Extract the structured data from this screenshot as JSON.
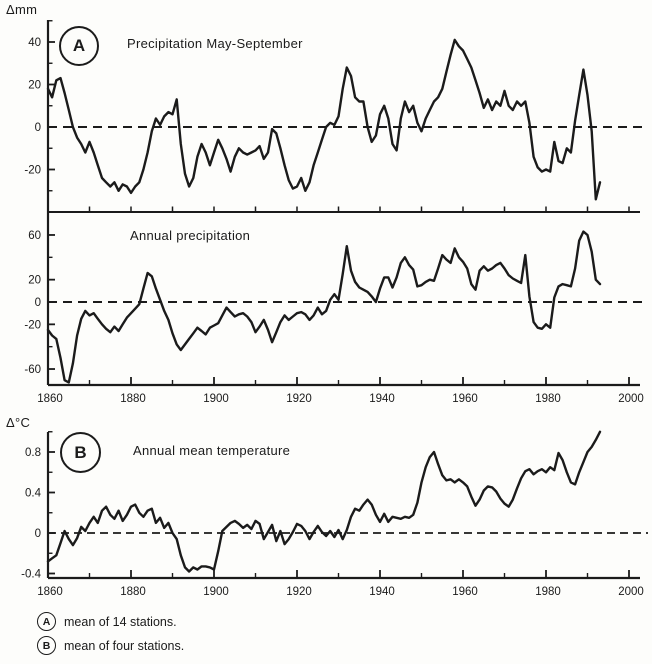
{
  "figure": {
    "unit_label_top": "Δmm",
    "unit_label_bottom": "Δ°C",
    "ink": "#1b1b1b",
    "background": "#fdfdfb",
    "footnotes": [
      {
        "marker": "A",
        "text": "mean of 14 stations."
      },
      {
        "marker": "B",
        "text": "mean of four stations."
      }
    ]
  },
  "chart_data": [
    {
      "type": "line",
      "panel_marker": "A",
      "title": "Precipitation May-September",
      "ylabel": "Δmm",
      "xlim": [
        1860,
        2000
      ],
      "ylim": [
        -40,
        50
      ],
      "x_start": 1860,
      "x_end": 1993,
      "x_step": 1,
      "zero_line_dashed": true,
      "grid": false,
      "yticks_labeled": [
        40,
        20,
        0,
        -20
      ],
      "yticks_minor": [
        50,
        30,
        10,
        -10,
        -30
      ],
      "values": [
        18,
        14,
        22,
        23,
        16,
        8,
        0,
        -5,
        -8,
        -12,
        -7,
        -12,
        -18,
        -24,
        -26,
        -28,
        -26,
        -30,
        -27,
        -28,
        -31,
        -28,
        -26,
        -20,
        -12,
        -2,
        4,
        1,
        5,
        7,
        6,
        13,
        -8,
        -22,
        -28,
        -24,
        -14,
        -8,
        -12,
        -18,
        -12,
        -6,
        -10,
        -15,
        -21,
        -14,
        -10,
        -12,
        -13,
        -12,
        -11,
        -9,
        -15,
        -12,
        -1,
        -3,
        -10,
        -18,
        -25,
        -29,
        -28,
        -24,
        -30,
        -26,
        -18,
        -12,
        -6,
        0,
        2,
        1,
        5,
        18,
        28,
        24,
        14,
        12,
        12,
        0,
        -7,
        -4,
        6,
        10,
        4,
        -8,
        -11,
        4,
        12,
        7,
        10,
        2,
        -2,
        4,
        8,
        12,
        14,
        18,
        26,
        34,
        41,
        38,
        36,
        32,
        28,
        22,
        16,
        9,
        13,
        8,
        12,
        10,
        17,
        10,
        8,
        12,
        10,
        12,
        2,
        -14,
        -19,
        -21,
        -20,
        -21,
        -7,
        -16,
        -17,
        -10,
        -12,
        3,
        15,
        27,
        15,
        -2,
        -34,
        -26
      ]
    },
    {
      "type": "line",
      "panel_marker": "",
      "title": "Annual precipitation",
      "ylabel": "Δmm",
      "xlim": [
        1860,
        2000
      ],
      "ylim": [
        -75,
        80
      ],
      "x_start": 1860,
      "x_end": 1993,
      "x_step": 1,
      "zero_line_dashed": true,
      "grid": false,
      "yticks_labeled": [
        60,
        20,
        0,
        -20,
        -60
      ],
      "yticks_minor": [
        40,
        -40
      ],
      "xticks_labeled": [
        1860,
        1880,
        1900,
        1920,
        1940,
        1960,
        1980,
        2000
      ],
      "xticks_minor": [
        1870,
        1890,
        1910,
        1930,
        1950,
        1970,
        1990
      ],
      "values": [
        -25,
        -30,
        -33,
        -50,
        -70,
        -72,
        -55,
        -30,
        -15,
        -8,
        -12,
        -10,
        -15,
        -20,
        -24,
        -27,
        -22,
        -26,
        -20,
        -14,
        -10,
        -6,
        -2,
        12,
        26,
        23,
        12,
        2,
        -8,
        -16,
        -28,
        -38,
        -43,
        -38,
        -33,
        -28,
        -23,
        -26,
        -29,
        -23,
        -21,
        -19,
        -12,
        -5,
        -9,
        -13,
        -11,
        -10,
        -13,
        -18,
        -27,
        -22,
        -16,
        -25,
        -36,
        -27,
        -18,
        -12,
        -16,
        -13,
        -10,
        -9,
        -11,
        -16,
        -12,
        -5,
        -11,
        -8,
        2,
        7,
        2,
        25,
        50,
        28,
        18,
        13,
        11,
        9,
        5,
        0,
        12,
        22,
        22,
        13,
        22,
        35,
        40,
        33,
        29,
        14,
        15,
        18,
        20,
        19,
        30,
        42,
        38,
        35,
        48,
        40,
        36,
        30,
        16,
        11,
        28,
        32,
        28,
        30,
        33,
        35,
        30,
        24,
        21,
        19,
        17,
        42,
        5,
        -18,
        -23,
        -24,
        -20,
        -23,
        4,
        14,
        16,
        15,
        14,
        30,
        55,
        63,
        60,
        45,
        20,
        16
      ]
    },
    {
      "type": "line",
      "panel_marker": "B",
      "title": "Annual mean temperature",
      "ylabel": "Δ°C",
      "xlim": [
        1860,
        2000
      ],
      "ylim": [
        -0.45,
        1.0
      ],
      "x_start": 1860,
      "x_end": 1993,
      "x_step": 1,
      "zero_line_dashed": true,
      "grid": false,
      "yticks_labeled": [
        0.8,
        0.4,
        0,
        -0.4
      ],
      "yticks_minor": [
        1.0,
        0.6,
        0.2,
        -0.2
      ],
      "xticks_labeled": [
        1860,
        1880,
        1900,
        1920,
        1940,
        1960,
        1980,
        2000
      ],
      "xticks_minor": [
        1870,
        1890,
        1910,
        1930,
        1950,
        1970,
        1990
      ],
      "values": [
        -0.28,
        -0.25,
        -0.22,
        -0.1,
        0.02,
        -0.06,
        -0.12,
        -0.05,
        0.06,
        0.02,
        0.1,
        0.16,
        0.1,
        0.22,
        0.26,
        0.18,
        0.14,
        0.22,
        0.12,
        0.18,
        0.26,
        0.28,
        0.2,
        0.16,
        0.22,
        0.24,
        0.1,
        0.15,
        0.05,
        0.1,
        0.0,
        -0.06,
        -0.22,
        -0.34,
        -0.38,
        -0.34,
        -0.36,
        -0.33,
        -0.33,
        -0.34,
        -0.36,
        -0.18,
        0.02,
        0.06,
        0.1,
        0.12,
        0.09,
        0.05,
        0.08,
        0.04,
        0.12,
        0.09,
        -0.06,
        0.01,
        0.08,
        -0.08,
        0.02,
        -0.11,
        -0.06,
        0.01,
        0.09,
        0.07,
        0.02,
        -0.06,
        0.01,
        0.07,
        0.01,
        -0.03,
        0.02,
        -0.04,
        0.03,
        -0.06,
        0.03,
        0.16,
        0.24,
        0.22,
        0.28,
        0.33,
        0.28,
        0.18,
        0.11,
        0.19,
        0.11,
        0.16,
        0.15,
        0.14,
        0.16,
        0.15,
        0.18,
        0.3,
        0.5,
        0.65,
        0.75,
        0.8,
        0.68,
        0.57,
        0.52,
        0.53,
        0.5,
        0.53,
        0.5,
        0.46,
        0.36,
        0.27,
        0.33,
        0.42,
        0.46,
        0.45,
        0.41,
        0.34,
        0.29,
        0.26,
        0.33,
        0.44,
        0.54,
        0.61,
        0.63,
        0.58,
        0.61,
        0.63,
        0.6,
        0.65,
        0.62,
        0.79,
        0.72,
        0.6,
        0.5,
        0.48,
        0.6,
        0.7,
        0.8,
        0.85,
        0.92,
        1.0
      ]
    }
  ]
}
